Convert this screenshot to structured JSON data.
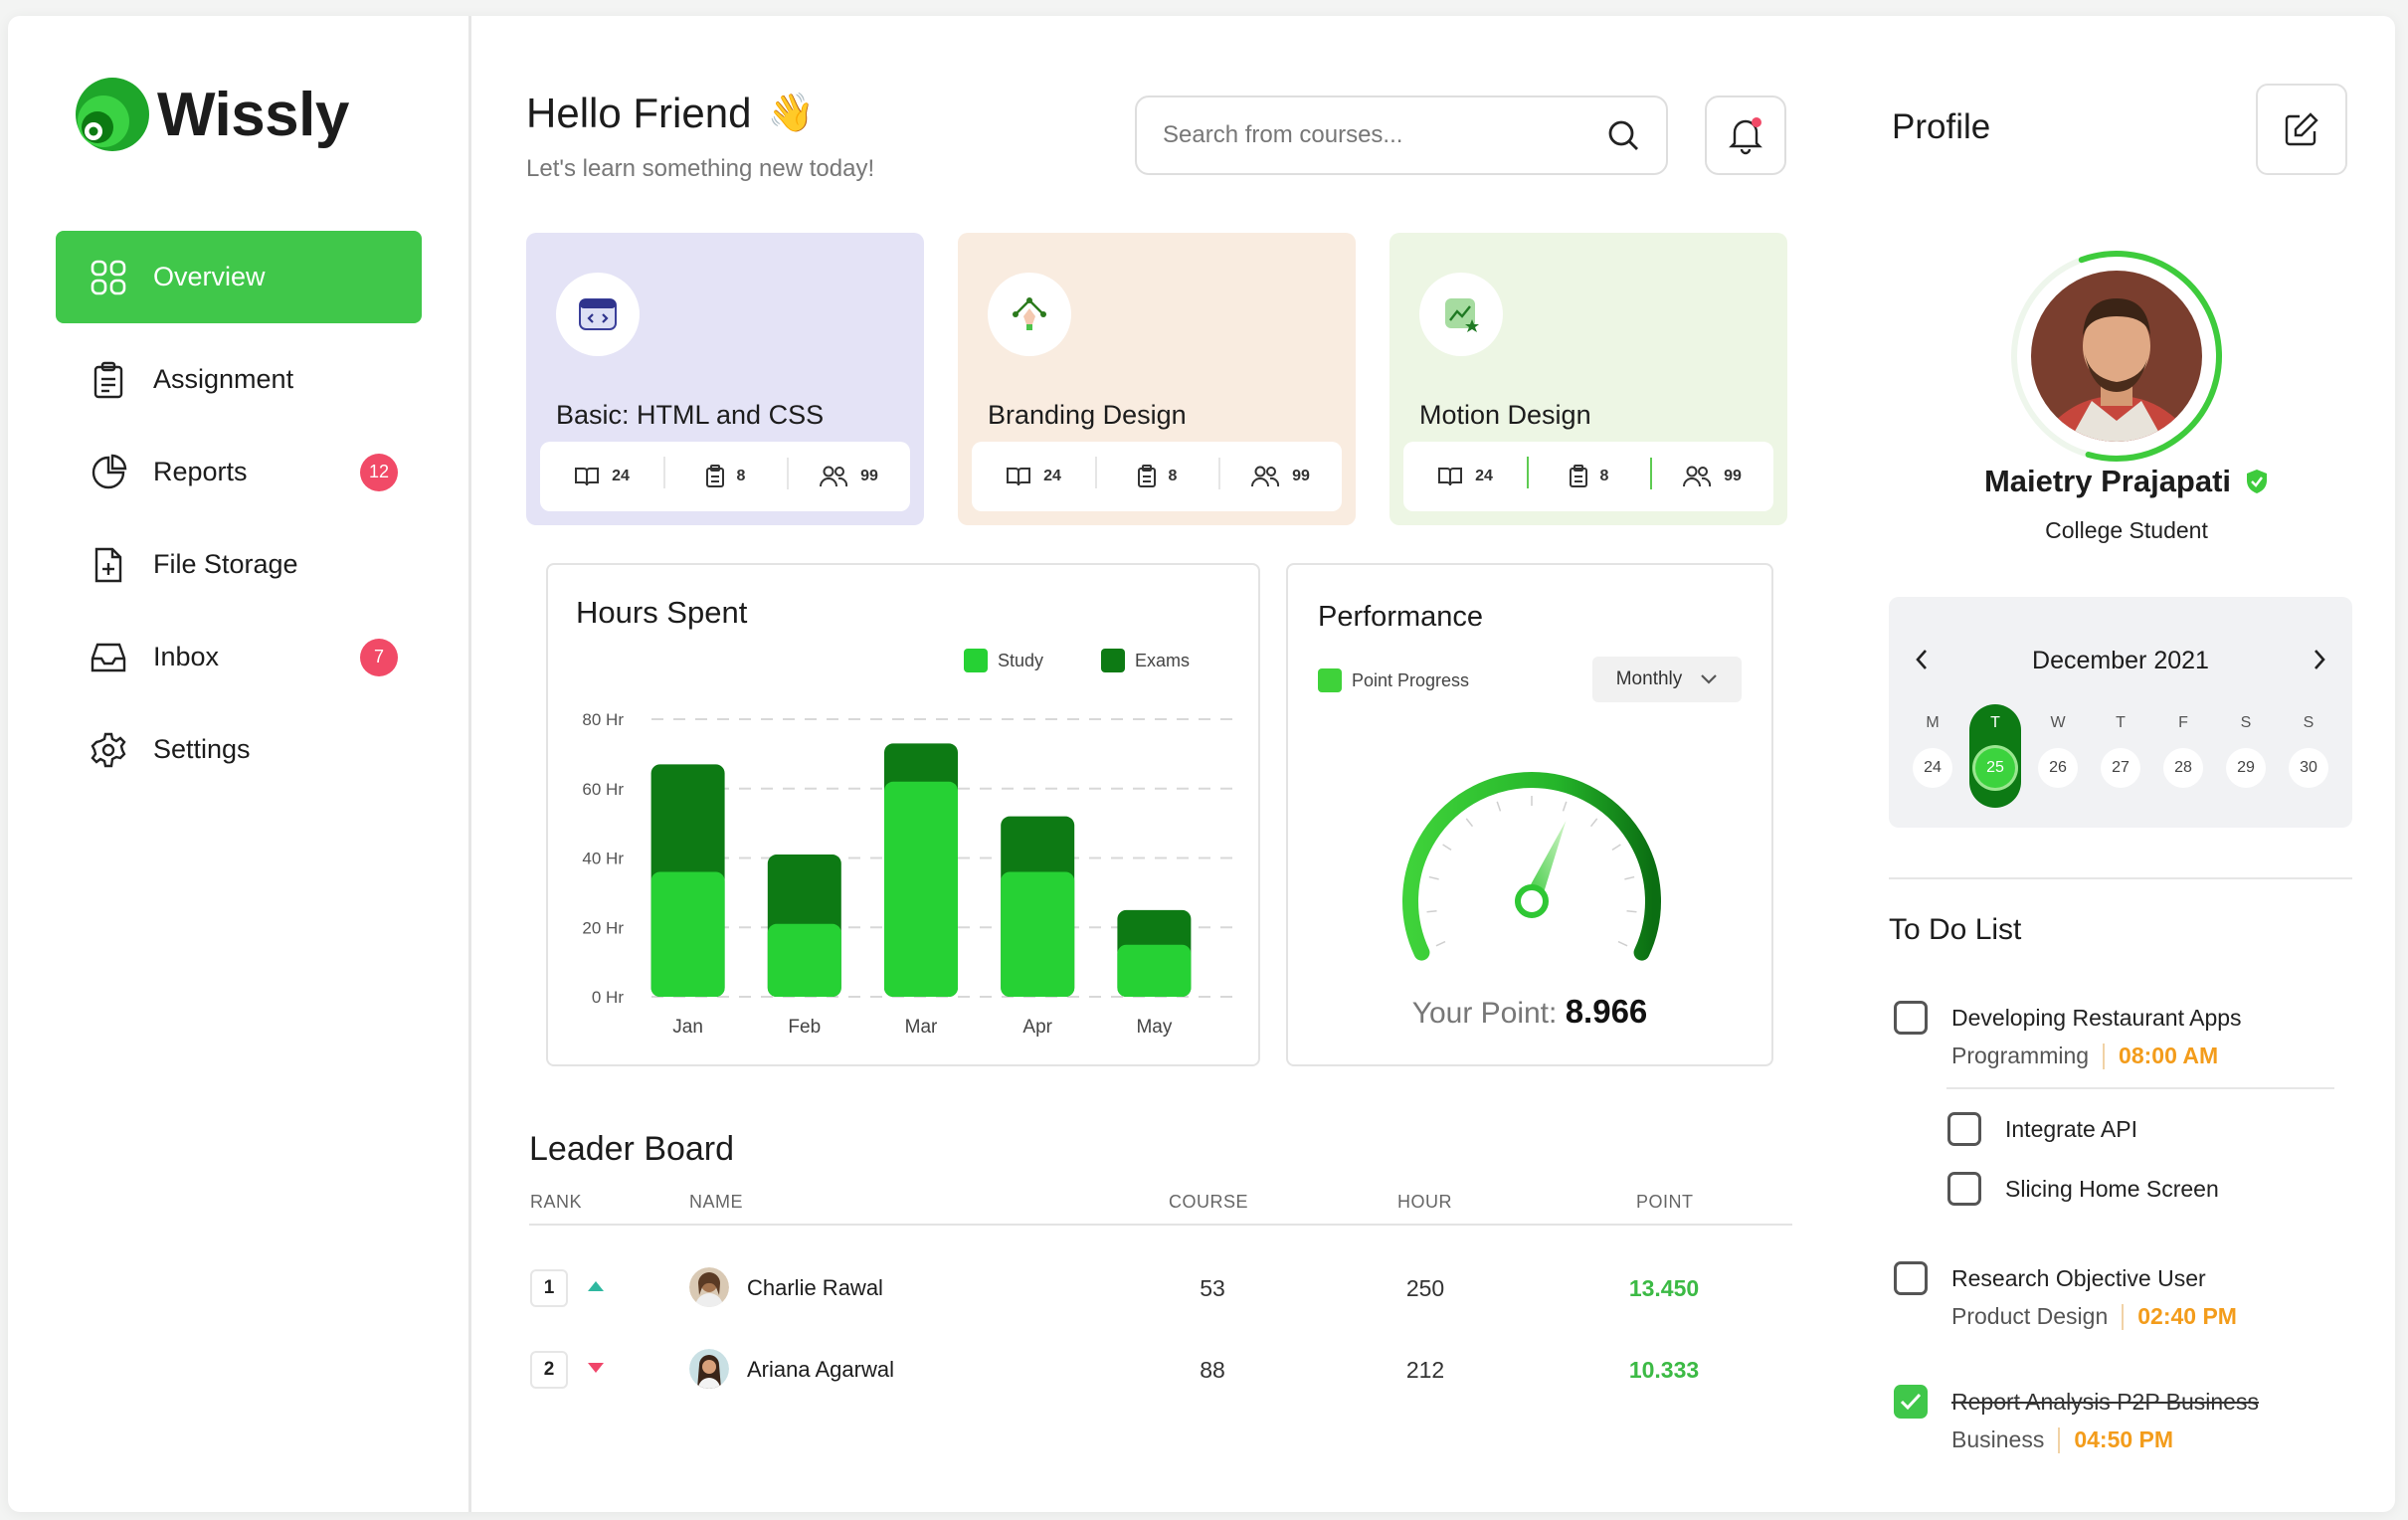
{
  "app": {
    "name": "Wissly"
  },
  "sidebar": {
    "items": [
      {
        "label": "Overview",
        "icon": "grid-icon",
        "active": true
      },
      {
        "label": "Assignment",
        "icon": "clipboard-icon"
      },
      {
        "label": "Reports",
        "icon": "pie-chart-icon",
        "badge": "12"
      },
      {
        "label": "File Storage",
        "icon": "file-plus-icon"
      },
      {
        "label": "Inbox",
        "icon": "inbox-icon",
        "badge": "7"
      },
      {
        "label": "Settings",
        "icon": "gear-icon"
      }
    ]
  },
  "header": {
    "title": "Hello Friend",
    "title_emoji": "👋",
    "subtitle": "Let's learn something new today!",
    "search_placeholder": "Search from courses..."
  },
  "courses": [
    {
      "title": "Basic: HTML and CSS",
      "icon": "code-icon",
      "bg": "#e4e3f6",
      "lessons": "24",
      "assignments": "8",
      "students": "99"
    },
    {
      "title": "Branding Design",
      "icon": "pen-tool-icon",
      "bg": "#f9ece0",
      "lessons": "24",
      "assignments": "8",
      "students": "99"
    },
    {
      "title": "Motion Design",
      "icon": "chart-star-icon",
      "bg": "#edf6e4",
      "lessons": "24",
      "assignments": "8",
      "students": "99"
    }
  ],
  "hours_spent": {
    "title": "Hours Spent",
    "legend": {
      "study": "Study",
      "exams": "Exams"
    },
    "colors": {
      "study": "#26d134",
      "exams": "#0d7a14"
    }
  },
  "chart_data": {
    "type": "bar",
    "stacked": true,
    "title": "Hours Spent",
    "categories": [
      "Jan",
      "Feb",
      "Mar",
      "Apr",
      "May"
    ],
    "series": [
      {
        "name": "Study",
        "values": [
          36,
          21,
          62,
          36,
          15
        ]
      },
      {
        "name": "Exams",
        "values": [
          31,
          20,
          11,
          16,
          10
        ]
      }
    ],
    "yticks": [
      "0 Hr",
      "20 Hr",
      "40 Hr",
      "60 Hr",
      "80 Hr"
    ],
    "ylim": [
      0,
      80
    ],
    "grid": true,
    "legend_position": "top-right"
  },
  "performance": {
    "title": "Performance",
    "legend": "Point Progress",
    "period": "Monthly",
    "point_label": "Your Point:",
    "point_value": "8.966",
    "gauge_fraction": 0.6
  },
  "leaderboard": {
    "title": "Leader Board",
    "columns": {
      "rank": "RANK",
      "name": "NAME",
      "course": "COURSE",
      "hour": "HOUR",
      "point": "POINT"
    },
    "rows": [
      {
        "rank": "1",
        "trend": "up",
        "name": "Charlie Rawal",
        "course": "53",
        "hour": "250",
        "point": "13.450"
      },
      {
        "rank": "2",
        "trend": "down",
        "name": "Ariana Agarwal",
        "course": "88",
        "hour": "212",
        "point": "10.333"
      }
    ]
  },
  "profile": {
    "title": "Profile",
    "name": "Maietry Prajapati",
    "role": "College Student",
    "progress_fraction": 0.6
  },
  "calendar": {
    "month": "December 2021",
    "days": [
      {
        "label": "M",
        "date": "24"
      },
      {
        "label": "T",
        "date": "25",
        "active": true
      },
      {
        "label": "W",
        "date": "26"
      },
      {
        "label": "T",
        "date": "27"
      },
      {
        "label": "F",
        "date": "28"
      },
      {
        "label": "S",
        "date": "29"
      },
      {
        "label": "S",
        "date": "30"
      }
    ]
  },
  "todo": {
    "title": "To Do List",
    "items": [
      {
        "name": "Developing Restaurant Apps",
        "category": "Programming",
        "time": "08:00 AM",
        "done": false
      },
      {
        "name": "Integrate API",
        "done": false,
        "sub": true
      },
      {
        "name": "Slicing Home Screen",
        "done": false,
        "sub": true
      },
      {
        "name": "Research Objective User",
        "category": "Product Design",
        "time": "02:40 PM",
        "done": false
      },
      {
        "name": "Report Analysis P2P Business",
        "category": "Business",
        "time": "04:50 PM",
        "done": true
      }
    ]
  }
}
